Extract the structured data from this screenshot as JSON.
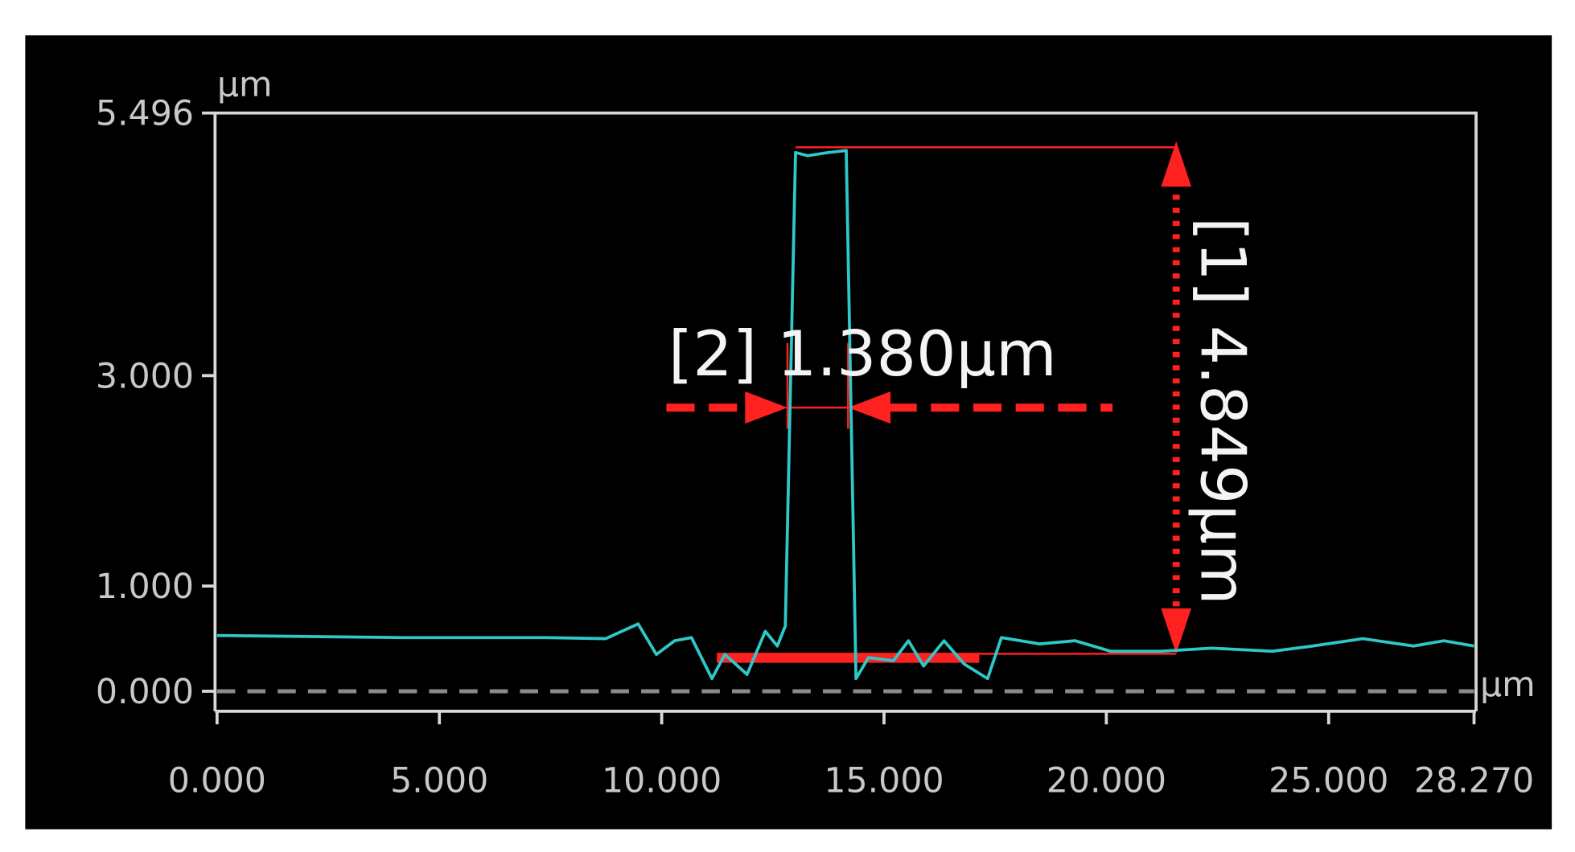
{
  "chart_data": {
    "type": "line",
    "x_label": "µm",
    "y_label": "µm",
    "xlim": [
      0,
      28.27
    ],
    "ylim": [
      -0.19,
      5.496
    ],
    "xticks": [
      {
        "value": 0,
        "label": "0.000"
      },
      {
        "value": 5,
        "label": "5.000"
      },
      {
        "value": 10,
        "label": "10.000"
      },
      {
        "value": 15,
        "label": "15.000"
      },
      {
        "value": 20,
        "label": "20.000"
      },
      {
        "value": 25,
        "label": "25.000"
      },
      {
        "value": 28.27,
        "label": "28.270"
      }
    ],
    "yticks": [
      {
        "value": 0,
        "label": "0.000"
      },
      {
        "value": 1,
        "label": "1.000"
      },
      {
        "value": 3,
        "label": "3.000"
      },
      {
        "value": 5.496,
        "label": "5.496"
      }
    ],
    "series": [
      {
        "color": "#2ec8c8",
        "x": [
          0,
          4.2,
          7.38,
          8.74,
          9.47,
          9.88,
          10.29,
          10.67,
          11.13,
          11.42,
          11.92,
          12.33,
          12.6,
          12.78,
          13.01,
          13.28,
          13.74,
          14.15,
          14.37,
          14.65,
          15.21,
          15.55,
          15.89,
          16.35,
          16.8,
          17.33,
          17.64,
          18.5,
          19.3,
          20.1,
          21.23,
          22.37,
          23.73,
          24.64,
          25.77,
          26.91,
          27.59,
          28.27
        ],
        "values": [
          0.53,
          0.51,
          0.51,
          0.5,
          0.64,
          0.35,
          0.48,
          0.51,
          0.12,
          0.35,
          0.16,
          0.57,
          0.43,
          0.62,
          5.12,
          5.09,
          5.12,
          5.14,
          0.12,
          0.32,
          0.29,
          0.48,
          0.24,
          0.48,
          0.26,
          0.12,
          0.51,
          0.45,
          0.48,
          0.38,
          0.38,
          0.41,
          0.38,
          0.43,
          0.5,
          0.43,
          0.48,
          0.43
        ]
      }
    ],
    "annotations": [
      "[2] 1.380µm",
      "[1] 4.849µm"
    ]
  }
}
